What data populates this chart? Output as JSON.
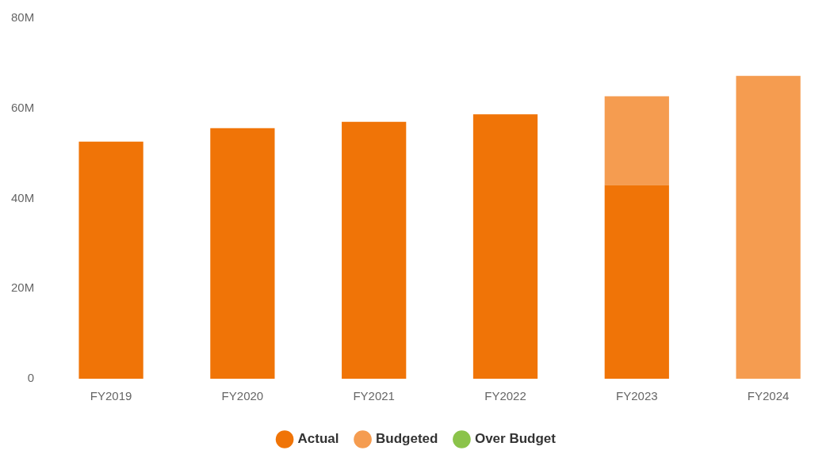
{
  "chart_data": {
    "type": "bar",
    "stacked": true,
    "categories": [
      "FY2019",
      "FY2020",
      "FY2021",
      "FY2022",
      "FY2023",
      "FY2024"
    ],
    "series": [
      {
        "name": "Actual",
        "color": "#f07407",
        "values": [
          52.6,
          55.6,
          57.0,
          58.7,
          43.0,
          null
        ]
      },
      {
        "name": "Budgeted",
        "color": "#f59c50",
        "values": [
          null,
          null,
          null,
          null,
          19.7,
          67.2
        ]
      },
      {
        "name": "Over Budget",
        "color": "#8bc34a",
        "values": [
          null,
          null,
          null,
          null,
          null,
          null
        ]
      }
    ],
    "ylim": [
      0,
      80
    ],
    "yticks": [
      {
        "value": 0,
        "label": "0"
      },
      {
        "value": 20,
        "label": "20M"
      },
      {
        "value": 40,
        "label": "40M"
      },
      {
        "value": 60,
        "label": "60M"
      },
      {
        "value": 80,
        "label": "80M"
      }
    ],
    "grid": false,
    "legend": "bottom"
  }
}
